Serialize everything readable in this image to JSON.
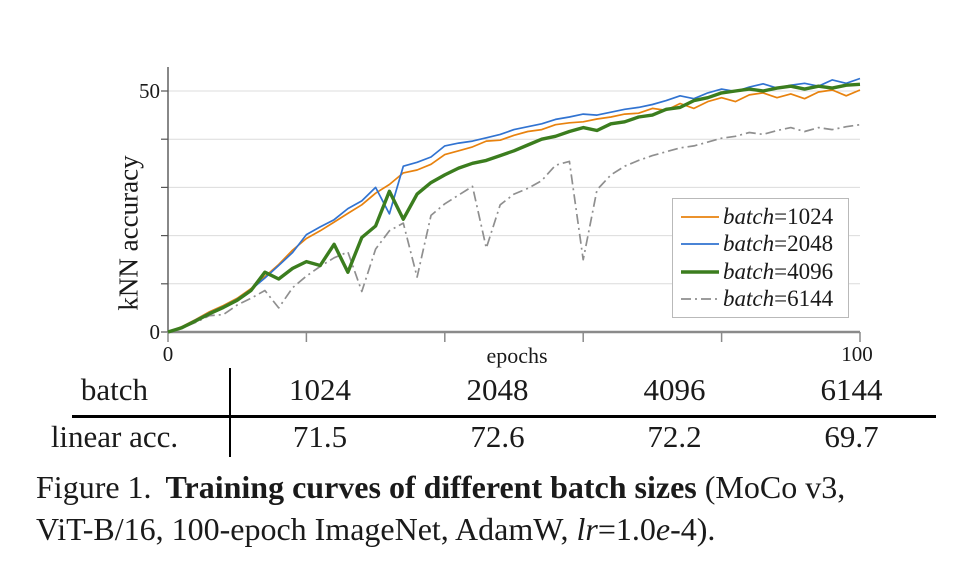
{
  "axis_labels": {
    "y_title": "kNN accuracy",
    "x_title": "epochs",
    "y_tick_top": "50",
    "y_tick_bottom": "0",
    "x_tick_left": "0",
    "x_tick_right": "100"
  },
  "chart_data": {
    "type": "line",
    "title": "",
    "xlabel": "epochs",
    "ylabel": "kNN accuracy",
    "xlim": [
      0,
      100
    ],
    "ylim": [
      0,
      55
    ],
    "xticks": [
      0,
      20,
      40,
      60,
      80,
      100
    ],
    "xtick_labels_shown": [
      "0",
      "100"
    ],
    "yticks": [
      0,
      10,
      20,
      30,
      40,
      50
    ],
    "ytick_labels_shown": [
      "0",
      "50"
    ],
    "grid": "horizontal",
    "legend_position": "inside lower right",
    "x": [
      0,
      2,
      4,
      6,
      8,
      10,
      12,
      14,
      16,
      18,
      20,
      22,
      24,
      26,
      28,
      30,
      32,
      34,
      36,
      38,
      40,
      42,
      44,
      46,
      48,
      50,
      52,
      54,
      56,
      58,
      60,
      62,
      64,
      66,
      68,
      70,
      72,
      74,
      76,
      78,
      80,
      82,
      84,
      86,
      88,
      90,
      92,
      94,
      96,
      98,
      100
    ],
    "series": [
      {
        "name": "batch=1024",
        "legend_word": "batch",
        "legend_rest": "=1024",
        "color": "#e8820e",
        "width": 1.7,
        "dash": "",
        "values": [
          0,
          1.1,
          2.6,
          4.2,
          5.5,
          7.0,
          9.0,
          11.5,
          14.0,
          17.0,
          19.4,
          21.0,
          22.8,
          24.6,
          26.4,
          28.8,
          30.6,
          33.0,
          33.6,
          34.8,
          36.8,
          37.6,
          38.4,
          39.6,
          39.8,
          40.8,
          41.6,
          42.0,
          43.0,
          43.4,
          43.6,
          44.2,
          44.6,
          45.2,
          45.4,
          46.4,
          46.0,
          47.4,
          46.4,
          47.8,
          48.6,
          47.8,
          49.2,
          49.6,
          48.6,
          49.4,
          48.4,
          49.8,
          50.2,
          49.0,
          50.2
        ]
      },
      {
        "name": "batch=2048",
        "legend_word": "batch",
        "legend_rest": "=2048",
        "color": "#3173d1",
        "width": 1.7,
        "dash": "",
        "values": [
          0,
          1.0,
          2.5,
          4.0,
          5.3,
          6.8,
          8.8,
          11.2,
          13.8,
          16.5,
          20.2,
          21.8,
          23.3,
          25.6,
          27.2,
          30.0,
          24.5,
          34.4,
          35.2,
          36.3,
          38.6,
          39.2,
          39.6,
          40.3,
          41.0,
          42.0,
          42.6,
          43.2,
          44.1,
          44.6,
          45.2,
          45.0,
          45.6,
          46.2,
          46.6,
          47.2,
          48.0,
          49.0,
          48.4,
          49.6,
          50.4,
          49.9,
          50.8,
          51.5,
          50.6,
          51.2,
          51.6,
          51.0,
          52.3,
          51.6,
          52.6
        ]
      },
      {
        "name": "batch=4096",
        "legend_word": "batch",
        "legend_rest": "=4096",
        "color": "#3b7d1e",
        "width": 3.4,
        "dash": "",
        "values": [
          0,
          0.9,
          2.3,
          3.8,
          5.1,
          6.6,
          8.6,
          12.4,
          11.0,
          13.2,
          14.6,
          13.8,
          18.2,
          12.4,
          19.6,
          22.0,
          29.2,
          23.4,
          28.6,
          31.0,
          32.6,
          34.0,
          35.0,
          35.6,
          36.6,
          37.6,
          38.8,
          40.0,
          40.6,
          41.6,
          42.4,
          41.8,
          43.2,
          43.6,
          44.6,
          45.0,
          46.2,
          46.6,
          48.0,
          48.6,
          49.6,
          50.0,
          50.4,
          50.0,
          50.6,
          51.0,
          50.4,
          51.0,
          50.6,
          51.2,
          51.4
        ]
      },
      {
        "name": "batch=6144",
        "legend_word": "batch",
        "legend_rest": "=6144",
        "color": "#8f8f8f",
        "width": 1.7,
        "dash": "10 4 2 4",
        "values": [
          0,
          0.8,
          2.0,
          3.4,
          3.6,
          5.6,
          7.0,
          8.6,
          5.0,
          9.2,
          11.6,
          13.6,
          15.4,
          16.6,
          8.4,
          17.2,
          21.0,
          22.6,
          11.4,
          24.2,
          26.6,
          28.4,
          30.2,
          17.4,
          26.4,
          28.6,
          29.8,
          31.4,
          34.6,
          35.4,
          15.0,
          29.5,
          32.6,
          34.4,
          35.6,
          36.6,
          37.4,
          38.2,
          38.6,
          39.4,
          40.2,
          40.6,
          41.4,
          41.0,
          41.8,
          42.4,
          41.6,
          42.4,
          42.0,
          42.6,
          43.0
        ]
      }
    ]
  },
  "table": {
    "header_label": "batch",
    "row_label": "linear acc.",
    "columns": [
      "1024",
      "2048",
      "4096",
      "6144"
    ],
    "values": [
      "71.5",
      "72.6",
      "72.2",
      "69.7"
    ]
  },
  "caption": {
    "figlabel": "Figure 1.",
    "title_bold": "Training curves of different batch sizes",
    "line1_rest": "(MoCo v3,",
    "line2_pre": "ViT-B/16, 100-epoch ImageNet, AdamW, ",
    "lr_italic": "lr",
    "mid": "=1.0",
    "e_italic": "e",
    "suffix": "-4)."
  }
}
